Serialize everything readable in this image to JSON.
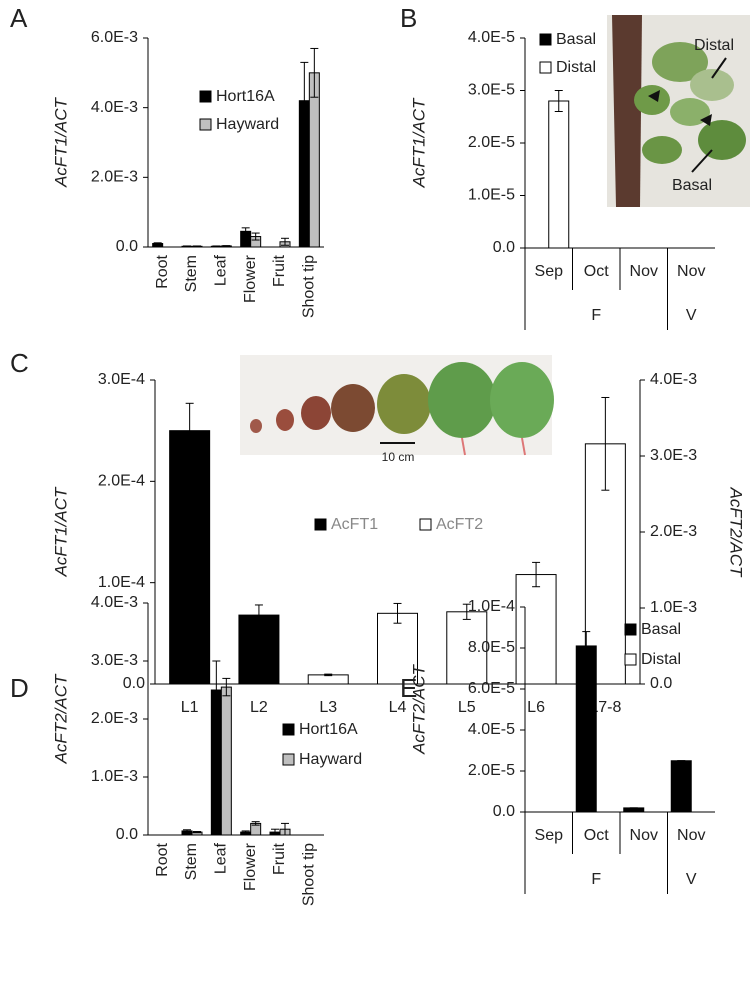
{
  "chart_data": [
    {
      "label": "A",
      "type": "bar",
      "y_label": "AcFT1/ACT",
      "categories": [
        "Root",
        "Stem",
        "Leaf",
        "Flower",
        "Fruit",
        "Shoot tip"
      ],
      "series": [
        {
          "name": "Hort16A",
          "color": "#000000",
          "values": [
            0.0001,
            2e-05,
            2e-05,
            0.00045,
            0,
            0.0042
          ],
          "errors": [
            2e-05,
            1e-05,
            1e-05,
            0.0001,
            0,
            0.0011
          ]
        },
        {
          "name": "Hayward",
          "color": "#bfbfbf",
          "values": [
            0,
            2e-05,
            3e-05,
            0.0003,
            0.00015,
            0.005
          ],
          "errors": [
            0,
            1e-05,
            1e-05,
            0.0001,
            0.0001,
            0.0007
          ]
        }
      ],
      "ylim": [
        0,
        0.006
      ],
      "yticks": [
        {
          "value": 0,
          "label": "0.0"
        },
        {
          "value": 0.002,
          "label": "2.0E-3"
        },
        {
          "value": 0.004,
          "label": "4.0E-3"
        },
        {
          "value": 0.006,
          "label": "6.0E-3"
        }
      ]
    },
    {
      "label": "B",
      "type": "bar",
      "y_label": "AcFT1/ACT",
      "categories": [
        "Sep",
        "Oct",
        "Nov",
        "Nov"
      ],
      "groups": [
        {
          "label": "F",
          "count": 3
        },
        {
          "label": "V",
          "count": 1
        }
      ],
      "series": [
        {
          "name": "Basal",
          "color": "#000000",
          "values": [
            0,
            0,
            0,
            0
          ],
          "errors": [
            0,
            0,
            0,
            0
          ]
        },
        {
          "name": "Distal",
          "color": "#ffffff",
          "values": [
            2.8e-05,
            0,
            0,
            0
          ],
          "errors": [
            2e-06,
            0,
            0,
            0
          ]
        }
      ],
      "ylim": [
        0,
        4e-05
      ],
      "yticks": [
        {
          "value": 0,
          "label": "0.0"
        },
        {
          "value": 1e-05,
          "label": "1.0E-5"
        },
        {
          "value": 2e-05,
          "label": "2.0E-5"
        },
        {
          "value": 3e-05,
          "label": "3.0E-5"
        },
        {
          "value": 4e-05,
          "label": "4.0E-5"
        }
      ],
      "annotations": [
        "Distal",
        "Basal"
      ]
    },
    {
      "label": "C",
      "type": "bar",
      "y_label": "AcFT1/ACT",
      "y2_label": "AcFT2/ACT",
      "categories": [
        "L1",
        "L2",
        "L3",
        "L4",
        "L5",
        "L6",
        "L7-8"
      ],
      "series": [
        {
          "name": "AcFT1",
          "color": "#000000",
          "values": [
            0.00025,
            6.8e-05,
            null,
            null,
            null,
            null,
            null
          ],
          "errors": [
            2.7e-05,
            1e-05,
            null,
            null,
            null,
            null,
            null
          ]
        },
        {
          "name": "AcFT2",
          "color": "#ffffff",
          "axis": "y2",
          "values": [
            null,
            null,
            0.00012,
            0.00093,
            0.00095,
            0.00144,
            0.00316
          ],
          "errors": [
            null,
            null,
            1e-05,
            0.00013,
            0.0001,
            0.00016,
            0.00061
          ]
        }
      ],
      "legend_text_color": "#888888",
      "ylim": [
        0,
        0.0003
      ],
      "yticks": [
        {
          "value": 0,
          "label": "0.0"
        },
        {
          "value": 0.0001,
          "label": "1.0E-4"
        },
        {
          "value": 0.0002,
          "label": "2.0E-4"
        },
        {
          "value": 0.0003,
          "label": "3.0E-4"
        }
      ],
      "y2lim": [
        0,
        0.004
      ],
      "y2ticks": [
        {
          "value": 0,
          "label": "0.0"
        },
        {
          "value": 0.001,
          "label": "1.0E-3"
        },
        {
          "value": 0.002,
          "label": "2.0E-3"
        },
        {
          "value": 0.003,
          "label": "3.0E-3"
        },
        {
          "value": 0.004,
          "label": "4.0E-3"
        }
      ],
      "scale_bar": "10 cm"
    },
    {
      "label": "D",
      "type": "bar",
      "y_label": "AcFT2/ACT",
      "categories": [
        "Root",
        "Stem",
        "Leaf",
        "Flower",
        "Fruit",
        "Shoot tip"
      ],
      "series": [
        {
          "name": "Hort16A",
          "color": "#000000",
          "values": [
            0,
            7e-05,
            0.0025,
            5e-05,
            5e-05,
            0
          ],
          "errors": [
            0,
            2e-05,
            0.0005,
            2e-05,
            5e-05,
            0
          ]
        },
        {
          "name": "Hayward",
          "color": "#bfbfbf",
          "values": [
            0,
            5e-05,
            0.00255,
            0.0002,
            0.0001,
            0
          ],
          "errors": [
            0,
            1e-05,
            0.00015,
            3e-05,
            0.0001,
            0
          ]
        }
      ],
      "ylim": [
        0,
        0.004
      ],
      "yticks": [
        {
          "value": 0,
          "label": "0.0"
        },
        {
          "value": 0.001,
          "label": "1.0E-3"
        },
        {
          "value": 0.002,
          "label": "2.0E-3"
        },
        {
          "value": 0.003,
          "label": "3.0E-3"
        },
        {
          "value": 0.004,
          "label": "4.0E-3"
        }
      ]
    },
    {
      "label": "E",
      "type": "bar",
      "y_label": "AcFT2/ACT",
      "categories": [
        "Sep",
        "Oct",
        "Nov",
        "Nov"
      ],
      "groups": [
        {
          "label": "F",
          "count": 3
        },
        {
          "label": "V",
          "count": 1
        }
      ],
      "series": [
        {
          "name": "Basal",
          "color": "#000000",
          "values": [
            0,
            8.1e-05,
            2e-06,
            2.5e-05
          ],
          "errors": [
            0,
            7e-06,
            0,
            0
          ]
        },
        {
          "name": "Distal",
          "color": "#ffffff",
          "values": [
            0,
            0,
            0,
            0
          ],
          "errors": [
            0,
            0,
            0,
            0
          ]
        }
      ],
      "ylim": [
        0,
        0.0001
      ],
      "yticks": [
        {
          "value": 0,
          "label": "0.0"
        },
        {
          "value": 2e-05,
          "label": "2.0E-5"
        },
        {
          "value": 4e-05,
          "label": "4.0E-5"
        },
        {
          "value": 6e-05,
          "label": "6.0E-5"
        },
        {
          "value": 8e-05,
          "label": "8.0E-5"
        },
        {
          "value": 0.0001,
          "label": "1.0E-4"
        }
      ]
    }
  ]
}
